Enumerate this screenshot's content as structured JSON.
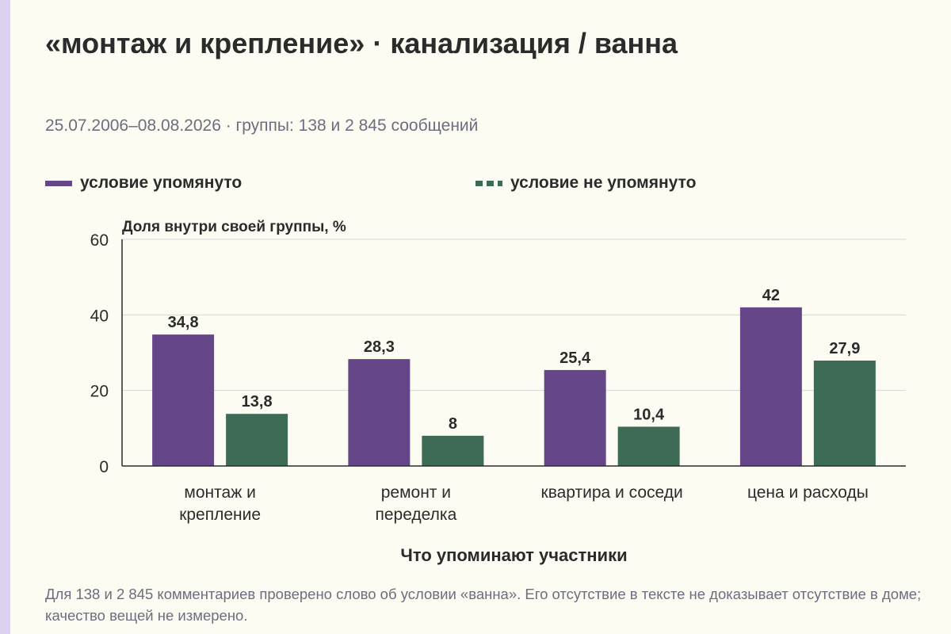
{
  "header": {
    "title": "«монтаж и крепление» · канализация / ванна",
    "subtitle": "25.07.2006–08.08.2026 · группы: 138 и 2 845 сообщений"
  },
  "legend": [
    {
      "label": "условие упомянуто",
      "color": "#654688",
      "style": "solid"
    },
    {
      "label": "условие не упомянуто",
      "color": "#3e6b55",
      "style": "dashed"
    }
  ],
  "chart_data": {
    "type": "bar",
    "ylabel": "Доля внутри своей группы, %",
    "xlabel": "Что упоминают участники",
    "categories": [
      [
        "монтаж и",
        "крепление"
      ],
      [
        "ремонт и",
        "переделка"
      ],
      [
        "квартира и соседи"
      ],
      [
        "цена и расходы"
      ]
    ],
    "series": [
      {
        "name": "условие упомянуто",
        "values": [
          34.8,
          28.3,
          25.4,
          42
        ],
        "labels": [
          "34,8",
          "28,3",
          "25,4",
          "42"
        ],
        "color": "#654688"
      },
      {
        "name": "условие не упомянуто",
        "values": [
          13.8,
          8,
          10.4,
          27.9
        ],
        "labels": [
          "13,8",
          "8",
          "10,4",
          "27,9"
        ],
        "color": "#3e6b55"
      }
    ],
    "ylim": [
      0,
      60
    ],
    "yticks": [
      0,
      20,
      40,
      60
    ],
    "grid": true,
    "legend_position": "top"
  },
  "footnote": "Для 138 и 2 845 комментариев проверено слово об условии «ванна». Его отсутствие в тексте не доказывает отсутствие в доме; качество вещей не измерено."
}
